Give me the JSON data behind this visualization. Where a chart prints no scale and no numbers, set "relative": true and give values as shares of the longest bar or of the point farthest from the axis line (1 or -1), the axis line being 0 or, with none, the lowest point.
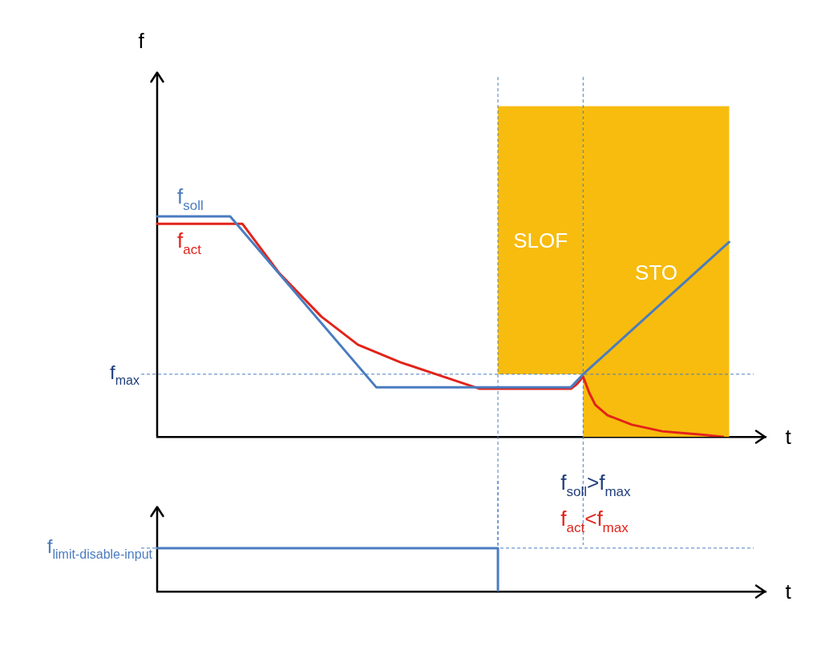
{
  "chart_data": [
    {
      "type": "line",
      "relative": true,
      "xlabel": "t",
      "ylabel": "f",
      "legend": false,
      "marker": "none",
      "categories": [
        null,
        null,
        null,
        null,
        null,
        null,
        null,
        null,
        null,
        null,
        null,
        null,
        null,
        null,
        null,
        null,
        null,
        null,
        null,
        null,
        null,
        null,
        null,
        null,
        null,
        null,
        null,
        null,
        null,
        null,
        null,
        null,
        null,
        null,
        null,
        null,
        null,
        null,
        null,
        null,
        null,
        null,
        null,
        null,
        null,
        null,
        null,
        null,
        null,
        null,
        null,
        null,
        null,
        null,
        null,
        null,
        null,
        null,
        null,
        null,
        null,
        null,
        null,
        null,
        null,
        null,
        null,
        null,
        null,
        null,
        null,
        null,
        null,
        null,
        null,
        null,
        null,
        null,
        null,
        null,
        null,
        null,
        null,
        null,
        null,
        null,
        null,
        null,
        null,
        null,
        null,
        null,
        null,
        null,
        null,
        null,
        null,
        null,
        null,
        null,
        null
      ],
      "series": [
        {
          "name": "f$_{soll}$",
          "color": "#4a7cc0",
          "values": [
            1,
            null,
            null,
            null,
            null,
            null,
            null,
            null,
            null,
            null,
            null,
            null,
            1,
            null,
            null,
            null,
            null,
            null,
            null,
            null,
            null,
            null,
            null,
            null,
            null,
            null,
            null,
            null,
            null,
            null,
            null,
            null,
            null,
            null,
            null,
            null,
            0.225,
            null,
            null,
            null,
            null,
            null,
            null,
            null,
            null,
            null,
            null,
            null,
            null,
            null,
            null,
            null,
            null,
            null,
            null,
            null,
            null,
            null,
            null,
            null,
            null,
            null,
            null,
            null,
            null,
            null,
            null,
            null,
            0.225,
            null,
            0.284,
            null,
            null,
            null,
            null,
            null,
            null,
            null,
            null,
            null,
            null,
            null,
            null,
            null,
            null,
            null,
            null,
            null,
            null,
            null,
            null,
            null,
            null,
            null,
            0.884,
            null,
            null,
            null,
            null,
            null,
            null
          ]
        },
        {
          "name": "f$_{act}$",
          "color": "#e2231a",
          "values": [
            0.967,
            null,
            null,
            null,
            null,
            null,
            null,
            null,
            null,
            null,
            null,
            null,
            null,
            null,
            0.967,
            null,
            null,
            null,
            null,
            null,
            0.745,
            null,
            null,
            null,
            null,
            null,
            null,
            0.545,
            null,
            null,
            null,
            null,
            null,
            0.418,
            null,
            null,
            null,
            null,
            null,
            null,
            0.338,
            null,
            null,
            null,
            null,
            null,
            null,
            0.273,
            null,
            null,
            null,
            null,
            null,
            0.218,
            null,
            null,
            null,
            null,
            null,
            null,
            null,
            null,
            null,
            null,
            null,
            null,
            null,
            null,
            0.218,
            0.24,
            0.273,
            0.2,
            0.145,
            null,
            0.098,
            null,
            null,
            null,
            0.055,
            null,
            null,
            null,
            null,
            0.025,
            null,
            null,
            null,
            null,
            null,
            0.011,
            null,
            null,
            null,
            0,
            null,
            null,
            null,
            null,
            null,
            null,
            null
          ]
        }
      ],
      "ref_lines": [
        {
          "axis": "y",
          "value": 0.284,
          "label": "f$_{max}$",
          "color": "#4a7cc0",
          "line_style": "dashed"
        }
      ],
      "annotations": [
        "SLOF",
        "STO",
        "f$_{soll}$>f$_{max}$",
        "f$_{act}$<f$_{max}$"
      ]
    },
    {
      "type": "step",
      "relative": true,
      "xlabel": "t",
      "legend": "left",
      "marker": "none",
      "categories": [
        null,
        null,
        null,
        null,
        null,
        null,
        null,
        null,
        null,
        null,
        null,
        null,
        null,
        null,
        null,
        null,
        null,
        null,
        null,
        null,
        null,
        null,
        null,
        null,
        null,
        null,
        null,
        null,
        null,
        null,
        null,
        null,
        null,
        null,
        null,
        null,
        null,
        null,
        null,
        null,
        null,
        null,
        null,
        null,
        null,
        null,
        null,
        null,
        null,
        null,
        null,
        null,
        null,
        null,
        null,
        null,
        null,
        null,
        null,
        null,
        null,
        null,
        null,
        null,
        null,
        null,
        null,
        null,
        null,
        null,
        null,
        null,
        null,
        null,
        null,
        null,
        null,
        null,
        null,
        null,
        null,
        null,
        null,
        null,
        null,
        null,
        null,
        null,
        null,
        null,
        null,
        null,
        null,
        null,
        null,
        null,
        null,
        null,
        null,
        null,
        null
      ],
      "series": [
        {
          "name": "f$_{limit-disable-input}$",
          "color": "#4a7cc0",
          "values": [
            1,
            null,
            null,
            null,
            null,
            null,
            null,
            null,
            null,
            null,
            null,
            null,
            null,
            null,
            null,
            null,
            null,
            null,
            null,
            null,
            null,
            null,
            null,
            null,
            null,
            null,
            null,
            null,
            null,
            null,
            null,
            null,
            null,
            null,
            null,
            null,
            null,
            null,
            null,
            null,
            null,
            null,
            null,
            null,
            null,
            null,
            null,
            null,
            null,
            null,
            null,
            null,
            null,
            null,
            null,
            null,
            0,
            null,
            null,
            null,
            null,
            null,
            null,
            null,
            null,
            null,
            null,
            null,
            null,
            null,
            null,
            null,
            null,
            null,
            null,
            null,
            null,
            null,
            null,
            null,
            null,
            null,
            null,
            null,
            null,
            null,
            null,
            null,
            null,
            null,
            null,
            null,
            null,
            null,
            null,
            null,
            null,
            null,
            null,
            null,
            null
          ]
        }
      ],
      "ref_lines": [
        {
          "axis": "y",
          "value": 1,
          "color": "#4a7cc0",
          "line_style": "dashed"
        }
      ]
    }
  ]
}
